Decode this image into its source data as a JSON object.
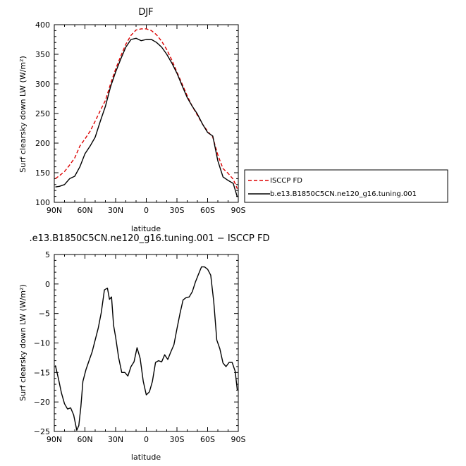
{
  "chart_data": [
    {
      "type": "line",
      "title": "DJF",
      "xlabel": "latitude",
      "ylabel": "Surf clearsky down LW (W/m²)",
      "xlim": [
        90,
        -90
      ],
      "ylim": [
        100,
        400
      ],
      "xticks": [
        90,
        60,
        30,
        0,
        -30,
        -60,
        -90
      ],
      "xtick_labels": [
        "90N",
        "60N",
        "30N",
        "0",
        "30S",
        "60S",
        "90S"
      ],
      "yticks": [
        100,
        150,
        200,
        250,
        300,
        350,
        400
      ],
      "ytick_labels": [
        "100",
        "150",
        "200",
        "250",
        "300",
        "350",
        "400"
      ],
      "legend_position": "right",
      "series": [
        {
          "name": "ISCCP FD",
          "color": "#dd0000",
          "dash": "dashed",
          "x": [
            89,
            85,
            80,
            75,
            70,
            65,
            60,
            55,
            50,
            45,
            40,
            35,
            30,
            25,
            20,
            15,
            10,
            5,
            0,
            -5,
            -10,
            -15,
            -20,
            -25,
            -30,
            -35,
            -40,
            -45,
            -50,
            -55,
            -60,
            -65,
            -70,
            -75,
            -80,
            -85,
            -89
          ],
          "y": [
            140,
            145,
            152,
            163,
            175,
            195,
            207,
            220,
            237,
            255,
            272,
            300,
            325,
            347,
            367,
            382,
            391,
            393,
            393,
            390,
            383,
            372,
            358,
            340,
            320,
            300,
            280,
            262,
            247,
            232,
            220,
            210,
            180,
            157,
            149,
            139,
            123
          ]
        },
        {
          "name": "b.e13.B1850C5CN.ne120_g16.tuning.001",
          "color": "#000000",
          "dash": "solid",
          "x": [
            89,
            85,
            80,
            75,
            70,
            65,
            60,
            55,
            50,
            45,
            40,
            35,
            30,
            25,
            20,
            15,
            10,
            5,
            0,
            -5,
            -10,
            -15,
            -20,
            -25,
            -30,
            -35,
            -40,
            -45,
            -50,
            -55,
            -60,
            -65,
            -70,
            -75,
            -80,
            -85,
            -89
          ],
          "y": [
            126,
            127,
            130,
            140,
            144,
            160,
            182,
            195,
            210,
            237,
            262,
            295,
            320,
            342,
            362,
            375,
            377,
            373,
            375,
            375,
            370,
            362,
            350,
            335,
            318,
            297,
            277,
            262,
            249,
            232,
            218,
            212,
            170,
            143,
            137,
            132,
            109
          ]
        }
      ]
    },
    {
      "type": "line",
      "title": ".e13.B1850C5CN.ne120_g16.tuning.001 − ISCCP FD",
      "xlabel": "latitude",
      "ylabel": "Surf clearsky down LW (W/m²)",
      "xlim": [
        90,
        -90
      ],
      "ylim": [
        -25,
        5
      ],
      "xticks": [
        90,
        60,
        30,
        0,
        -30,
        -60,
        -90
      ],
      "xtick_labels": [
        "90N",
        "60N",
        "30N",
        "0",
        "30S",
        "60S",
        "90S"
      ],
      "yticks": [
        -25,
        -20,
        -15,
        -10,
        -5,
        0,
        5
      ],
      "ytick_labels": [
        "−25",
        "−20",
        "−15",
        "−10",
        "−5",
        "0",
        "5"
      ],
      "series": [
        {
          "color": "#000000",
          "dash": "solid",
          "x": [
            89,
            86,
            83,
            80,
            77,
            74,
            71,
            68,
            66,
            64,
            62,
            59,
            56,
            53,
            50,
            47,
            44,
            41,
            38,
            36,
            34,
            32,
            30,
            27,
            24,
            21,
            18,
            15,
            12,
            9,
            6,
            3,
            0,
            -3,
            -6,
            -9,
            -12,
            -15,
            -18,
            -21,
            -24,
            -27,
            -30,
            -33,
            -36,
            -39,
            -42,
            -45,
            -48,
            -51,
            -54,
            -57,
            -60,
            -63,
            -66,
            -69,
            -72,
            -75,
            -78,
            -81,
            -84,
            -87,
            -89
          ],
          "y": [
            -13.8,
            -16,
            -18.5,
            -20.3,
            -21.2,
            -21,
            -22.2,
            -24.8,
            -24.0,
            -20.8,
            -16.5,
            -14.5,
            -13.0,
            -11.5,
            -9.5,
            -7.5,
            -4.8,
            -1.0,
            -0.7,
            -2.6,
            -2.2,
            -7.0,
            -9.0,
            -12.5,
            -15.0,
            -15.0,
            -15.6,
            -14.0,
            -13.2,
            -10.8,
            -12.6,
            -16.5,
            -18.8,
            -18.3,
            -16.5,
            -13.3,
            -13.0,
            -13.2,
            -12.0,
            -12.8,
            -11.5,
            -10.3,
            -7.6,
            -5.0,
            -2.7,
            -2.3,
            -2.2,
            -1.3,
            0.3,
            1.6,
            2.9,
            2.9,
            2.5,
            1.5,
            -3.0,
            -9.5,
            -11.0,
            -13.4,
            -14.0,
            -13.3,
            -13.3,
            -14.8,
            -18.0
          ]
        }
      ]
    }
  ]
}
